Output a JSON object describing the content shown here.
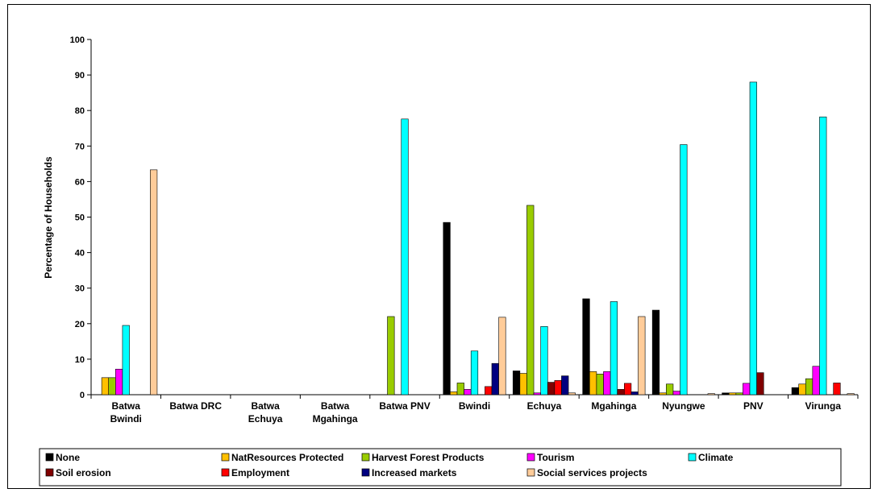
{
  "chart_data": {
    "type": "bar",
    "title": "",
    "xlabel": "",
    "ylabel": "Percentage of Households",
    "ylim": [
      0,
      100
    ],
    "yticks": [
      0,
      10,
      20,
      30,
      40,
      50,
      60,
      70,
      80,
      90,
      100
    ],
    "grid": false,
    "legend_position": "bottom",
    "categories": [
      [
        "Batwa",
        "Bwindi"
      ],
      [
        "Batwa DRC"
      ],
      [
        "Batwa",
        "Echuya"
      ],
      [
        "Batwa",
        "Mgahinga"
      ],
      [
        "Batwa PNV"
      ],
      [
        "Bwindi"
      ],
      [
        "Echuya"
      ],
      [
        "Mgahinga"
      ],
      [
        "Nyungwe"
      ],
      [
        "PNV"
      ],
      [
        "Virunga"
      ]
    ],
    "series": [
      {
        "name": "None",
        "color": "#000000",
        "values": [
          0,
          0,
          0,
          0,
          0,
          48.5,
          6.7,
          27,
          23.8,
          0.5,
          2
        ]
      },
      {
        "name": "NatResources Protected",
        "color": "#FFC000",
        "values": [
          4.8,
          0,
          0,
          0,
          0,
          0.8,
          6,
          6.5,
          0.5,
          0.5,
          3
        ]
      },
      {
        "name": "Harvest Forest Products",
        "color": "#99CC00",
        "values": [
          4.8,
          0,
          0,
          0,
          22,
          3.3,
          53.3,
          5.8,
          3,
          0.5,
          4.5
        ]
      },
      {
        "name": "Tourism",
        "color": "#FF00FF",
        "values": [
          7.2,
          0,
          0,
          0,
          0,
          1.5,
          0.5,
          6.5,
          1,
          3.2,
          8
        ]
      },
      {
        "name": "Climate",
        "color": "#00FFFF",
        "values": [
          19.5,
          0,
          0,
          0,
          77.6,
          12.3,
          19.2,
          26.2,
          70.4,
          88,
          78.2
        ]
      },
      {
        "name": "Soil erosion",
        "color": "#800000",
        "values": [
          0,
          0,
          0,
          0,
          0,
          0,
          3.5,
          1.5,
          0,
          6.2,
          0
        ]
      },
      {
        "name": "Employment",
        "color": "#FF0000",
        "values": [
          0,
          0,
          0,
          0,
          0,
          2.3,
          4,
          3.2,
          0,
          0,
          3.3
        ]
      },
      {
        "name": "Increased markets",
        "color": "#000080",
        "values": [
          0,
          0,
          0,
          0,
          0,
          8.8,
          5.3,
          0.8,
          0,
          0,
          0
        ]
      },
      {
        "name": "Social services projects",
        "color": "#FFCC99",
        "values": [
          63.3,
          0,
          0,
          0,
          0,
          21.8,
          0.5,
          22,
          0.3,
          0,
          0.3
        ]
      }
    ]
  }
}
